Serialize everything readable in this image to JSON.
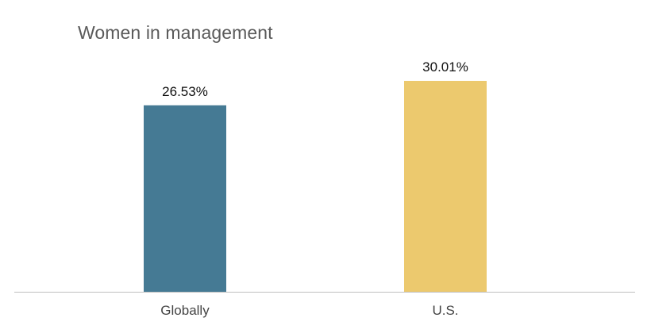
{
  "chart_data": {
    "type": "bar",
    "title": "Women in management",
    "categories": [
      "Globally",
      "U.S."
    ],
    "values": [
      26.53,
      30.01
    ],
    "value_labels": [
      "26.53%",
      "30.01%"
    ],
    "colors": [
      "#457a94",
      "#ecc96e"
    ],
    "ylim": [
      0,
      30.01
    ],
    "grid": false,
    "legend": "none"
  }
}
